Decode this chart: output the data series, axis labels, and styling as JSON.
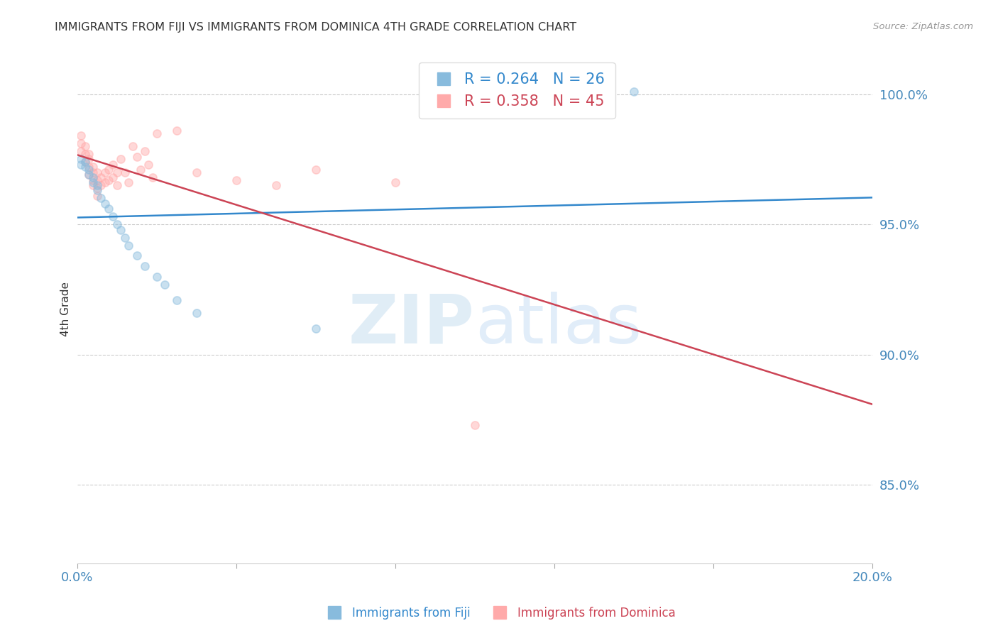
{
  "title": "IMMIGRANTS FROM FIJI VS IMMIGRANTS FROM DOMINICA 4TH GRADE CORRELATION CHART",
  "source": "Source: ZipAtlas.com",
  "ylabel": "4th Grade",
  "xlim": [
    0.0,
    0.2
  ],
  "ylim": [
    0.82,
    1.015
  ],
  "yticks_right": [
    1.0,
    0.95,
    0.9,
    0.85
  ],
  "ytick_labels_right": [
    "100.0%",
    "95.0%",
    "90.0%",
    "85.0%"
  ],
  "xticks": [
    0.0,
    0.04,
    0.08,
    0.12,
    0.16,
    0.2
  ],
  "xtick_labels": [
    "0.0%",
    "",
    "",
    "",
    "",
    "20.0%"
  ],
  "fiji_color": "#88bbdd",
  "dominica_color": "#ffaaaa",
  "fiji_line_color": "#3388cc",
  "dominica_line_color": "#cc4455",
  "fiji_R": 0.264,
  "fiji_N": 26,
  "dominica_R": 0.358,
  "dominica_N": 45,
  "fiji_scatter_x": [
    0.001,
    0.001,
    0.002,
    0.002,
    0.003,
    0.003,
    0.004,
    0.004,
    0.005,
    0.005,
    0.006,
    0.007,
    0.008,
    0.009,
    0.01,
    0.011,
    0.012,
    0.013,
    0.015,
    0.017,
    0.02,
    0.022,
    0.025,
    0.03,
    0.06,
    0.14
  ],
  "fiji_scatter_y": [
    0.975,
    0.973,
    0.974,
    0.972,
    0.971,
    0.969,
    0.968,
    0.966,
    0.965,
    0.963,
    0.96,
    0.958,
    0.956,
    0.953,
    0.95,
    0.948,
    0.945,
    0.942,
    0.938,
    0.934,
    0.93,
    0.927,
    0.921,
    0.916,
    0.91,
    1.001
  ],
  "dominica_scatter_x": [
    0.001,
    0.001,
    0.001,
    0.002,
    0.002,
    0.002,
    0.003,
    0.003,
    0.003,
    0.003,
    0.004,
    0.004,
    0.004,
    0.004,
    0.005,
    0.005,
    0.005,
    0.005,
    0.006,
    0.006,
    0.007,
    0.007,
    0.008,
    0.008,
    0.009,
    0.009,
    0.01,
    0.01,
    0.011,
    0.012,
    0.013,
    0.014,
    0.015,
    0.016,
    0.017,
    0.018,
    0.019,
    0.02,
    0.025,
    0.03,
    0.04,
    0.05,
    0.06,
    0.08,
    0.1
  ],
  "dominica_scatter_y": [
    0.984,
    0.981,
    0.978,
    0.98,
    0.977,
    0.974,
    0.977,
    0.975,
    0.972,
    0.969,
    0.972,
    0.97,
    0.967,
    0.965,
    0.97,
    0.967,
    0.964,
    0.961,
    0.968,
    0.965,
    0.97,
    0.966,
    0.971,
    0.967,
    0.973,
    0.968,
    0.97,
    0.965,
    0.975,
    0.97,
    0.966,
    0.98,
    0.976,
    0.971,
    0.978,
    0.973,
    0.968,
    0.985,
    0.986,
    0.97,
    0.967,
    0.965,
    0.971,
    0.966,
    0.873
  ],
  "watermark_zip": "ZIP",
  "watermark_atlas": "atlas",
  "background_color": "#ffffff",
  "grid_color": "#cccccc",
  "tick_label_color": "#4488bb",
  "title_color": "#333333",
  "marker_size": 10,
  "marker_alpha": 0.45,
  "line_width": 1.8
}
